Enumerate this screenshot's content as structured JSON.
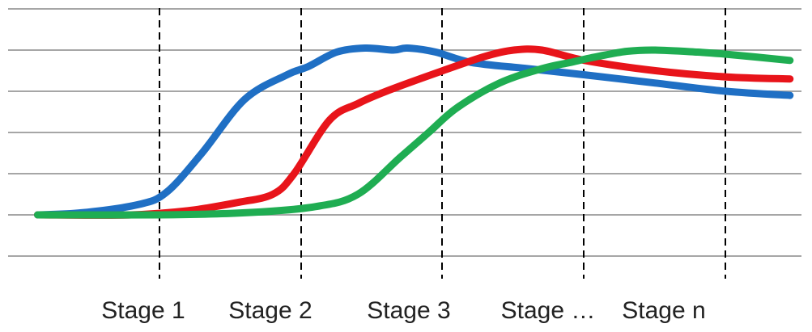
{
  "colors": {
    "background": "#ffffff",
    "grid": "#a6a6a6",
    "divider": "#000000",
    "label_text": "#222222"
  },
  "chart_data": {
    "type": "line",
    "title": "",
    "xlabel": "",
    "ylabel": "",
    "grid": true,
    "legend": "none",
    "stage_labels": [
      "Stage 1",
      "Stage 2",
      "Stage 3",
      "Stage …",
      "Stage n"
    ],
    "xlim": [
      0,
      5.5
    ],
    "ylim": [
      -1,
      5
    ],
    "gridlines_y": [
      -1,
      0,
      1,
      2,
      3,
      4,
      5
    ],
    "series": [
      {
        "color": "#1f6fc4",
        "x": [
          0.14,
          0.45,
          0.85,
          1.05,
          1.3,
          1.6,
          1.9,
          2.05,
          2.25,
          2.45,
          2.65,
          2.75,
          2.95,
          3.2,
          3.6,
          4.0,
          4.5,
          5.0,
          5.45
        ],
        "y": [
          0.0,
          0.05,
          0.25,
          0.55,
          1.5,
          2.8,
          3.4,
          3.6,
          3.95,
          4.05,
          4.0,
          4.05,
          3.95,
          3.7,
          3.55,
          3.4,
          3.2,
          3.0,
          2.9
        ]
      },
      {
        "color": "#e8141a",
        "x": [
          0.14,
          0.8,
          1.2,
          1.55,
          1.8,
          1.95,
          2.2,
          2.4,
          2.6,
          3.0,
          3.3,
          3.5,
          3.7,
          4.0,
          4.5,
          5.0,
          5.45
        ],
        "y": [
          0.0,
          0.0,
          0.1,
          0.3,
          0.5,
          1.0,
          2.3,
          2.7,
          3.0,
          3.5,
          3.85,
          4.0,
          4.0,
          3.75,
          3.5,
          3.35,
          3.3
        ]
      },
      {
        "color": "#1fad52",
        "x": [
          0.14,
          1.0,
          1.6,
          2.1,
          2.4,
          2.7,
          2.9,
          3.1,
          3.4,
          3.7,
          3.9,
          4.1,
          4.3,
          4.5,
          4.8,
          5.0,
          5.45
        ],
        "y": [
          0.0,
          0.0,
          0.05,
          0.2,
          0.5,
          1.4,
          2.0,
          2.6,
          3.2,
          3.55,
          3.7,
          3.85,
          3.97,
          4.0,
          3.95,
          3.9,
          3.75
        ]
      }
    ]
  }
}
